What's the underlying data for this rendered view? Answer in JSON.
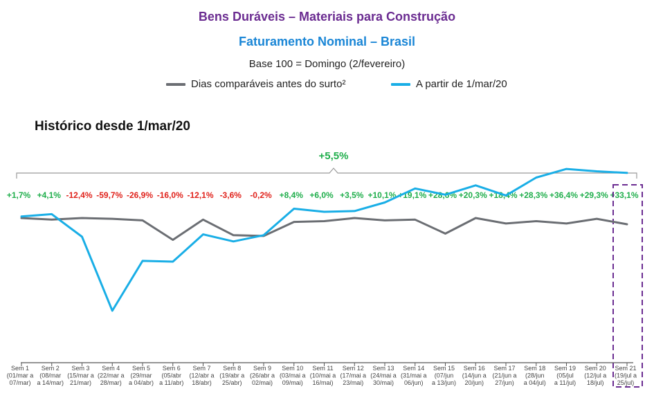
{
  "header": {
    "title": "Bens Duráveis – Materiais para Construção",
    "subtitle": "Faturamento Nominal – Brasil",
    "base_note": "Base 100 = Domingo (2/fevereiro)"
  },
  "legend": [
    {
      "label": "Dias comparáveis antes do surto²",
      "color": "#6b6e73"
    },
    {
      "label": "A partir de 1/mar/20",
      "color": "#19aee6"
    }
  ],
  "section_title": "Histórico desde 1/mar/20",
  "overall_change": "+5,5%",
  "colors": {
    "positive": "#1fae4b",
    "negative": "#e0221b",
    "highlight_box": "#6b2c91"
  },
  "chart_data": {
    "type": "line",
    "title": "Bens Duráveis – Materiais para Construção",
    "subtitle": "Faturamento Nominal – Brasil",
    "categories": [
      [
        "Sem 1",
        "(01/mar a",
        "07/mar)"
      ],
      [
        "Sem 2",
        "(08/mar",
        "a 14/mar)"
      ],
      [
        "Sem 3",
        "(15/mar a",
        "21/mar)"
      ],
      [
        "Sem 4",
        "(22/mar a",
        "28/mar)"
      ],
      [
        "Sem 5",
        "(29/mar",
        "a 04/abr)"
      ],
      [
        "Sem 6",
        "(05/abr",
        "a 11/abr)"
      ],
      [
        "Sem 7",
        "(12/abr a",
        "18/abr)"
      ],
      [
        "Sem 8",
        "(19/abr a",
        "25/abr)"
      ],
      [
        "Sem 9",
        "(26/abr a",
        "02/mai)"
      ],
      [
        "Sem 10",
        "(03/mai a",
        "09/mai)"
      ],
      [
        "Sem 11",
        "(10/mai a",
        "16/mai)"
      ],
      [
        "Sem 12",
        "(17/mai a",
        "23/mai)"
      ],
      [
        "Sem 13",
        "(24/mai a",
        "30/mai)"
      ],
      [
        "Sem 14",
        "(31/mai a",
        "06/jun)"
      ],
      [
        "Sem 15",
        "(07/jun",
        "a 13/jun)"
      ],
      [
        "Sem 16",
        "(14/jun a",
        "20/jun)"
      ],
      [
        "Sem 17",
        "(21/jun a",
        "27/jun)"
      ],
      [
        "Sem 18",
        "(28/jun",
        "a 04/jul)"
      ],
      [
        "Sem 19",
        "(05/jul",
        "a 11/jul)"
      ],
      [
        "Sem 20",
        "(12/jul a",
        "18/jul)"
      ],
      [
        "Sem 21",
        "(19/jul a",
        "25/jul)"
      ]
    ],
    "weekly_change_labels": [
      "+1,7%",
      "+4,1%",
      "-12,4%",
      "-59,7%",
      "-26,9%",
      "-16,0%",
      "-12,1%",
      "-3,6%",
      "-0,2%",
      "+8,4%",
      "+6,0%",
      "+3,5%",
      "+10,1%",
      "+19,1%",
      "+28,6%",
      "+20,3%",
      "+18,4%",
      "+28,3%",
      "+36,4%",
      "+29,3%",
      "+33,1%"
    ],
    "weekly_change_sign": [
      1,
      1,
      -1,
      -1,
      -1,
      -1,
      -1,
      -1,
      -1,
      1,
      1,
      1,
      1,
      1,
      1,
      1,
      1,
      1,
      1,
      1,
      1
    ],
    "series": [
      {
        "name": "Dias comparáveis antes do surto²",
        "color": "#6b6e73",
        "values": [
          100,
          99,
          100,
          99.5,
          98.5,
          86,
          99,
          89,
          88.5,
          97.5,
          98,
          100,
          98.5,
          99,
          90,
          100,
          96.5,
          98,
          96.5,
          99.5,
          96
        ]
      },
      {
        "name": "A partir de 1/mar/20",
        "color": "#19aee6",
        "values": [
          101,
          102.5,
          88,
          40.5,
          72.5,
          72,
          89.5,
          85,
          89,
          106,
          104,
          104.5,
          110,
          119,
          115,
          121,
          114.5,
          126,
          131.5,
          130,
          129
        ]
      }
    ],
    "ylim": [
      0,
      160
    ],
    "highlight_category_index": 20,
    "grid": false,
    "legend_position": "top"
  }
}
